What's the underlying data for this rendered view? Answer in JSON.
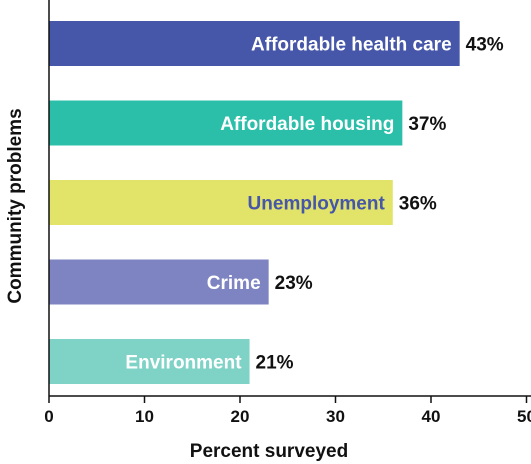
{
  "chart_data": {
    "type": "bar",
    "orientation": "horizontal",
    "title": "",
    "xlabel": "Percent surveyed",
    "ylabel": "Community problems",
    "xlim": [
      0,
      50
    ],
    "xticks": [
      0,
      10,
      20,
      30,
      40,
      50
    ],
    "grid": false,
    "categories": [
      "Affordable health care",
      "Affordable housing",
      "Unemployment",
      "Crime",
      "Environment"
    ],
    "values": [
      43,
      37,
      36,
      23,
      21
    ],
    "value_labels": [
      "43%",
      "37%",
      "36%",
      "23%",
      "21%"
    ],
    "bar_colors": [
      "#4656a8",
      "#2bbfa9",
      "#e2e46a",
      "#7e84c2",
      "#7fd3c6"
    ],
    "category_label_colors": [
      "#ffffff",
      "#ffffff",
      "#4656a8",
      "#ffffff",
      "#ffffff"
    ]
  }
}
